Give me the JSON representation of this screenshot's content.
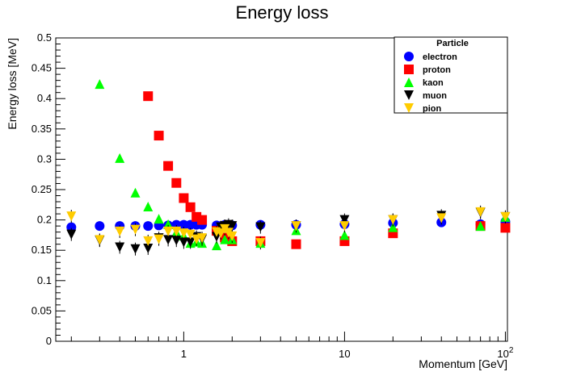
{
  "chart_data": {
    "type": "scatter",
    "title": "Energy loss",
    "xlabel": "Momentum [GeV]",
    "ylabel": "Energy loss [MeV]",
    "xscale": "log",
    "xlim": [
      0.16,
      103
    ],
    "ylim": [
      0,
      0.5
    ],
    "x_ticks": [
      {
        "value": 1,
        "label": "1"
      },
      {
        "value": 10,
        "label": "10"
      },
      {
        "value": 100,
        "label": "10",
        "sup": "2"
      }
    ],
    "y_ticks": [
      0,
      0.05,
      0.1,
      0.15,
      0.2,
      0.25,
      0.3,
      0.35,
      0.4,
      0.45,
      0.5
    ],
    "y_tick_labels": [
      "0",
      "0.05",
      "0.1",
      "0.15",
      "0.2",
      "0.25",
      "0.3",
      "0.35",
      "0.4",
      "0.45",
      "0.5"
    ],
    "legend": {
      "title": "Particle",
      "position": "top-right"
    },
    "series": [
      {
        "name": "electron",
        "marker": "circle",
        "color": "#0000ff",
        "points": [
          [
            0.2,
            0.188
          ],
          [
            0.3,
            0.19
          ],
          [
            0.4,
            0.19
          ],
          [
            0.5,
            0.19
          ],
          [
            0.6,
            0.19
          ],
          [
            0.7,
            0.191
          ],
          [
            0.8,
            0.191
          ],
          [
            0.9,
            0.192
          ],
          [
            1.0,
            0.192
          ],
          [
            1.1,
            0.192
          ],
          [
            1.2,
            0.192
          ],
          [
            1.3,
            0.192
          ],
          [
            1.6,
            0.191
          ],
          [
            1.7,
            0.19
          ],
          [
            1.8,
            0.192
          ],
          [
            1.9,
            0.192
          ],
          [
            2.0,
            0.191
          ],
          [
            3.0,
            0.192
          ],
          [
            5.0,
            0.192
          ],
          [
            10.0,
            0.193
          ],
          [
            20.0,
            0.195
          ],
          [
            40.0,
            0.196
          ],
          [
            70.0,
            0.193
          ],
          [
            100.0,
            0.197
          ]
        ]
      },
      {
        "name": "proton",
        "marker": "square",
        "color": "#ff0000",
        "points": [
          [
            0.6,
            0.404
          ],
          [
            0.7,
            0.339
          ],
          [
            0.8,
            0.289
          ],
          [
            0.9,
            0.261
          ],
          [
            1.0,
            0.236
          ],
          [
            1.1,
            0.221
          ],
          [
            1.2,
            0.205
          ],
          [
            1.3,
            0.2
          ],
          [
            1.6,
            0.182
          ],
          [
            1.8,
            0.171
          ],
          [
            2.0,
            0.165
          ],
          [
            3.0,
            0.165
          ],
          [
            5.0,
            0.16
          ],
          [
            10.0,
            0.165
          ],
          [
            20.0,
            0.178
          ],
          [
            70.0,
            0.19
          ],
          [
            100.0,
            0.187
          ]
        ]
      },
      {
        "name": "kaon",
        "marker": "triangle-up",
        "color": "#00ff00",
        "points": [
          [
            0.3,
            0.424
          ],
          [
            0.4,
            0.302
          ],
          [
            0.5,
            0.245
          ],
          [
            0.6,
            0.222
          ],
          [
            0.7,
            0.202
          ],
          [
            0.8,
            0.193
          ],
          [
            0.9,
            0.18
          ],
          [
            1.0,
            0.174
          ],
          [
            1.1,
            0.162
          ],
          [
            1.2,
            0.164
          ],
          [
            1.3,
            0.162
          ],
          [
            1.6,
            0.158
          ],
          [
            1.8,
            0.168
          ],
          [
            2.0,
            0.168
          ],
          [
            3.0,
            0.162
          ],
          [
            5.0,
            0.183
          ],
          [
            10.0,
            0.175
          ],
          [
            20.0,
            0.188
          ],
          [
            70.0,
            0.19
          ],
          [
            100.0,
            0.205
          ]
        ]
      },
      {
        "name": "muon",
        "marker": "triangle-down",
        "color": "#000000",
        "points": [
          [
            0.2,
            0.176
          ],
          [
            0.3,
            0.166
          ],
          [
            0.4,
            0.155
          ],
          [
            0.5,
            0.152
          ],
          [
            0.6,
            0.153
          ],
          [
            0.7,
            0.17
          ],
          [
            0.8,
            0.167
          ],
          [
            0.9,
            0.166
          ],
          [
            1.0,
            0.163
          ],
          [
            1.1,
            0.163
          ],
          [
            1.2,
            0.172
          ],
          [
            1.3,
            0.168
          ],
          [
            1.6,
            0.172
          ],
          [
            1.7,
            0.188
          ],
          [
            1.8,
            0.19
          ],
          [
            1.9,
            0.192
          ],
          [
            2.0,
            0.19
          ],
          [
            3.0,
            0.188
          ],
          [
            5.0,
            0.19
          ],
          [
            10.0,
            0.2
          ],
          [
            20.0,
            0.2
          ],
          [
            40.0,
            0.207
          ],
          [
            70.0,
            0.212
          ],
          [
            100.0,
            0.205
          ]
        ]
      },
      {
        "name": "pion",
        "marker": "triangle-down",
        "color": "#ffcc00",
        "points": [
          [
            0.2,
            0.206
          ],
          [
            0.3,
            0.167
          ],
          [
            0.4,
            0.181
          ],
          [
            0.5,
            0.184
          ],
          [
            0.6,
            0.165
          ],
          [
            0.7,
            0.168
          ],
          [
            0.8,
            0.181
          ],
          [
            0.9,
            0.181
          ],
          [
            1.0,
            0.178
          ],
          [
            1.1,
            0.176
          ],
          [
            1.2,
            0.168
          ],
          [
            1.3,
            0.17
          ],
          [
            1.6,
            0.18
          ],
          [
            1.7,
            0.178
          ],
          [
            1.8,
            0.185
          ],
          [
            1.9,
            0.179
          ],
          [
            2.0,
            0.173
          ],
          [
            3.0,
            0.162
          ],
          [
            5.0,
            0.19
          ],
          [
            10.0,
            0.19
          ],
          [
            20.0,
            0.2
          ],
          [
            40.0,
            0.203
          ],
          [
            70.0,
            0.213
          ],
          [
            100.0,
            0.205
          ]
        ]
      }
    ]
  }
}
